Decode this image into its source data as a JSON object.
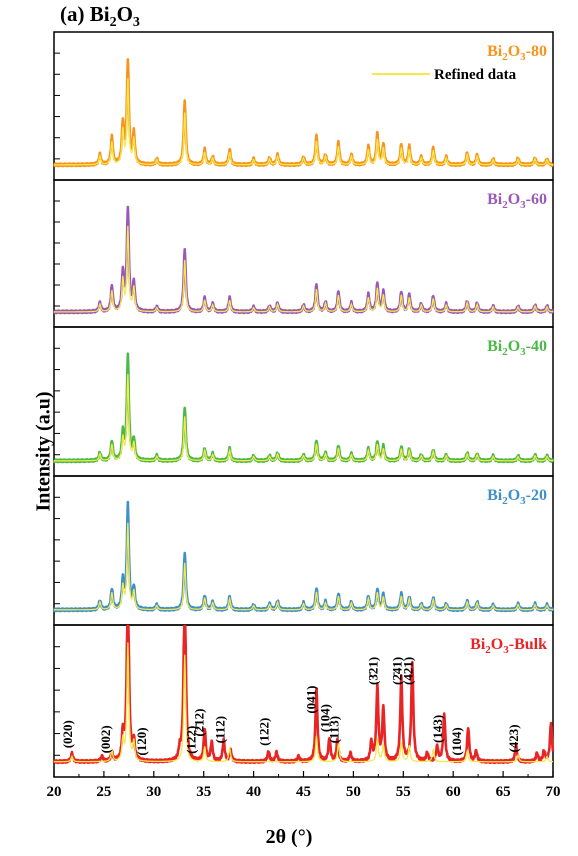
{
  "chart_data": {
    "type": "line",
    "title": "(a) Bi2O3",
    "xlabel": "2θ (°)",
    "ylabel": "Intensity (a.u)",
    "xlim": [
      20,
      70
    ],
    "xticks": [
      "20",
      "25",
      "30",
      "35",
      "40",
      "45",
      "50",
      "55",
      "60",
      "65",
      "70"
    ],
    "legend": {
      "label": "Refined data",
      "color": "#f5e84a",
      "position": "top-right"
    },
    "panels": [
      {
        "name": "Bi2O3-80",
        "label_main": "Bi",
        "label_sub1": "2",
        "label_mid": "O",
        "label_sub2": "3",
        "label_tail": "-80",
        "color": "#f7941d",
        "scale": 1.0,
        "peaks": [
          [
            24.6,
            0.1
          ],
          [
            25.8,
            0.27
          ],
          [
            26.9,
            0.4
          ],
          [
            27.4,
            1.0
          ],
          [
            28.0,
            0.3
          ],
          [
            30.3,
            0.06
          ],
          [
            33.1,
            0.62
          ],
          [
            35.1,
            0.15
          ],
          [
            35.9,
            0.08
          ],
          [
            37.6,
            0.15
          ],
          [
            40.0,
            0.06
          ],
          [
            41.6,
            0.07
          ],
          [
            42.4,
            0.1
          ],
          [
            45.0,
            0.08
          ],
          [
            46.3,
            0.28
          ],
          [
            47.2,
            0.1
          ],
          [
            48.5,
            0.22
          ],
          [
            49.8,
            0.1
          ],
          [
            51.5,
            0.18
          ],
          [
            52.4,
            0.3
          ],
          [
            53.0,
            0.2
          ],
          [
            54.8,
            0.2
          ],
          [
            55.6,
            0.18
          ],
          [
            56.8,
            0.08
          ],
          [
            58.0,
            0.17
          ],
          [
            59.3,
            0.08
          ],
          [
            61.4,
            0.12
          ],
          [
            62.4,
            0.1
          ],
          [
            64.0,
            0.06
          ],
          [
            66.5,
            0.07
          ],
          [
            68.2,
            0.07
          ],
          [
            69.4,
            0.06
          ]
        ]
      },
      {
        "name": "Bi2O3-60",
        "label_main": "Bi",
        "label_sub1": "2",
        "label_mid": "O",
        "label_sub2": "3",
        "label_tail": "-60",
        "color": "#9b59b6",
        "scale": 1.0,
        "peaks": [
          [
            24.6,
            0.09
          ],
          [
            25.8,
            0.25
          ],
          [
            26.9,
            0.38
          ],
          [
            27.4,
            1.0
          ],
          [
            28.0,
            0.28
          ],
          [
            30.3,
            0.05
          ],
          [
            33.1,
            0.62
          ],
          [
            35.1,
            0.14
          ],
          [
            35.9,
            0.08
          ],
          [
            37.6,
            0.14
          ],
          [
            40.0,
            0.05
          ],
          [
            41.6,
            0.06
          ],
          [
            42.4,
            0.09
          ],
          [
            45.0,
            0.07
          ],
          [
            46.3,
            0.27
          ],
          [
            47.2,
            0.1
          ],
          [
            48.5,
            0.2
          ],
          [
            49.8,
            0.09
          ],
          [
            51.5,
            0.17
          ],
          [
            52.4,
            0.28
          ],
          [
            53.0,
            0.2
          ],
          [
            54.8,
            0.2
          ],
          [
            55.6,
            0.17
          ],
          [
            56.8,
            0.08
          ],
          [
            58.0,
            0.16
          ],
          [
            59.3,
            0.08
          ],
          [
            61.4,
            0.11
          ],
          [
            62.4,
            0.09
          ],
          [
            64.0,
            0.06
          ],
          [
            66.5,
            0.06
          ],
          [
            68.2,
            0.07
          ],
          [
            69.4,
            0.06
          ]
        ]
      },
      {
        "name": "Bi2O3-40",
        "label_main": "Bi",
        "label_sub1": "2",
        "label_mid": "O",
        "label_sub2": "3",
        "label_tail": "-40",
        "color": "#4cb848",
        "scale": 1.0,
        "peaks": [
          [
            24.6,
            0.08
          ],
          [
            25.8,
            0.19
          ],
          [
            26.9,
            0.26
          ],
          [
            27.4,
            1.0
          ],
          [
            28.0,
            0.2
          ],
          [
            30.3,
            0.05
          ],
          [
            33.1,
            0.52
          ],
          [
            35.1,
            0.12
          ],
          [
            35.9,
            0.07
          ],
          [
            37.6,
            0.12
          ],
          [
            40.0,
            0.05
          ],
          [
            41.6,
            0.05
          ],
          [
            42.4,
            0.08
          ],
          [
            45.0,
            0.06
          ],
          [
            46.3,
            0.2
          ],
          [
            47.2,
            0.08
          ],
          [
            48.5,
            0.15
          ],
          [
            49.8,
            0.07
          ],
          [
            51.5,
            0.12
          ],
          [
            52.4,
            0.19
          ],
          [
            53.0,
            0.14
          ],
          [
            54.8,
            0.14
          ],
          [
            55.6,
            0.12
          ],
          [
            56.8,
            0.06
          ],
          [
            58.0,
            0.11
          ],
          [
            59.3,
            0.06
          ],
          [
            61.4,
            0.08
          ],
          [
            62.4,
            0.07
          ],
          [
            64.0,
            0.05
          ],
          [
            66.5,
            0.05
          ],
          [
            68.2,
            0.06
          ],
          [
            69.4,
            0.05
          ]
        ]
      },
      {
        "name": "Bi2O3-20",
        "label_main": "Bi",
        "label_sub1": "2",
        "label_mid": "O",
        "label_sub2": "3",
        "label_tail": "-20",
        "color": "#3f8fc9",
        "scale": 1.0,
        "peaks": [
          [
            24.6,
            0.09
          ],
          [
            25.8,
            0.2
          ],
          [
            26.9,
            0.27
          ],
          [
            27.4,
            1.0
          ],
          [
            28.0,
            0.21
          ],
          [
            30.3,
            0.05
          ],
          [
            33.1,
            0.55
          ],
          [
            35.1,
            0.14
          ],
          [
            35.9,
            0.08
          ],
          [
            37.6,
            0.13
          ],
          [
            40.0,
            0.05
          ],
          [
            41.6,
            0.06
          ],
          [
            42.4,
            0.09
          ],
          [
            45.0,
            0.07
          ],
          [
            46.3,
            0.21
          ],
          [
            47.2,
            0.08
          ],
          [
            48.5,
            0.16
          ],
          [
            49.8,
            0.08
          ],
          [
            51.5,
            0.13
          ],
          [
            52.4,
            0.2
          ],
          [
            53.0,
            0.15
          ],
          [
            54.8,
            0.16
          ],
          [
            55.6,
            0.13
          ],
          [
            56.8,
            0.06
          ],
          [
            58.0,
            0.12
          ],
          [
            59.3,
            0.06
          ],
          [
            61.4,
            0.09
          ],
          [
            62.4,
            0.08
          ],
          [
            64.0,
            0.05
          ],
          [
            66.5,
            0.06
          ],
          [
            68.2,
            0.06
          ],
          [
            69.4,
            0.05
          ]
        ]
      },
      {
        "name": "Bi2O3-Bulk",
        "label_main": "Bi",
        "label_sub1": "2",
        "label_mid": "O",
        "label_sub2": "3",
        "label_tail": "-Bulk",
        "color": "#e82424",
        "scale": 1.0,
        "clip": true,
        "peaks": [
          [
            21.8,
            0.08
          ],
          [
            24.8,
            0.05
          ],
          [
            25.8,
            0.08
          ],
          [
            26.9,
            0.25
          ],
          [
            27.4,
            1.8
          ],
          [
            28.0,
            0.18
          ],
          [
            32.6,
            0.1
          ],
          [
            33.1,
            1.8
          ],
          [
            35.1,
            0.3
          ],
          [
            35.8,
            0.18
          ],
          [
            37.0,
            0.2
          ],
          [
            37.7,
            0.1
          ],
          [
            41.5,
            0.1
          ],
          [
            42.3,
            0.09
          ],
          [
            44.5,
            0.05
          ],
          [
            46.3,
            0.68
          ],
          [
            47.6,
            0.22
          ],
          [
            48.4,
            0.2
          ],
          [
            49.7,
            0.08
          ],
          [
            51.8,
            0.18
          ],
          [
            52.4,
            0.7
          ],
          [
            53.0,
            0.5
          ],
          [
            54.8,
            0.78
          ],
          [
            55.9,
            0.93
          ],
          [
            57.4,
            0.08
          ],
          [
            58.4,
            0.14
          ],
          [
            59.1,
            0.45
          ],
          [
            61.5,
            0.32
          ],
          [
            62.3,
            0.1
          ],
          [
            66.3,
            0.15
          ],
          [
            68.4,
            0.08
          ],
          [
            69.1,
            0.1
          ],
          [
            69.8,
            0.37
          ]
        ],
        "refined_peaks": [
          [
            21.8,
            0.05
          ],
          [
            25.8,
            0.1
          ],
          [
            26.9,
            0.2
          ],
          [
            27.4,
            1.1
          ],
          [
            28.0,
            0.18
          ],
          [
            33.1,
            1.0
          ],
          [
            35.1,
            0.14
          ],
          [
            37.6,
            0.13
          ],
          [
            46.3,
            0.24
          ],
          [
            48.5,
            0.17
          ],
          [
            52.4,
            0.22
          ],
          [
            53.0,
            0.16
          ],
          [
            54.8,
            0.18
          ],
          [
            55.6,
            0.15
          ],
          [
            58.0,
            0.12
          ],
          [
            61.4,
            0.1
          ],
          [
            66.5,
            0.06
          ],
          [
            69.4,
            0.05
          ]
        ],
        "annotations": [
          {
            "x": 21.8,
            "label": "(020)"
          },
          {
            "x": 25.6,
            "label": "(002)"
          },
          {
            "x": 29.2,
            "label": "(120)"
          },
          {
            "x": 34.2,
            "label": "(122)"
          },
          {
            "x": 35.0,
            "label": "(2̄12)"
          },
          {
            "x": 37.1,
            "label": "(112)"
          },
          {
            "x": 41.5,
            "label": "(122)"
          },
          {
            "x": 46.2,
            "label": "(041)"
          },
          {
            "x": 47.6,
            "label": "(104)"
          },
          {
            "x": 48.5,
            "label": "(113)"
          },
          {
            "x": 52.4,
            "label": "(3̄21)"
          },
          {
            "x": 54.8,
            "label": "(2̄41)"
          },
          {
            "x": 55.9,
            "label": "(421)"
          },
          {
            "x": 58.9,
            "label": "(143)"
          },
          {
            "x": 60.8,
            "label": "(104)"
          },
          {
            "x": 66.5,
            "label": "(423)"
          }
        ]
      }
    ]
  }
}
